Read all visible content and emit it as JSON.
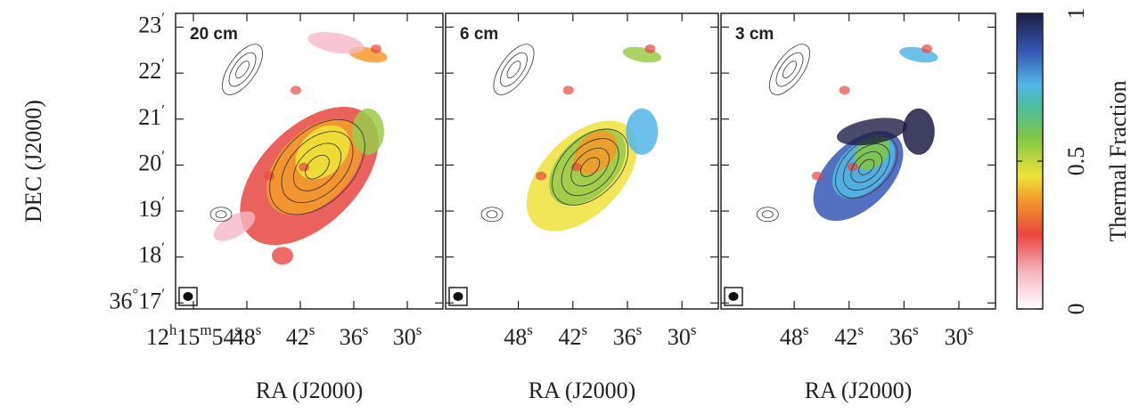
{
  "y_axis": {
    "label": "DEC (J2000)",
    "lim": [
      16.87,
      23.3
    ],
    "ticks": [
      {
        "value": 23,
        "label": "23′"
      },
      {
        "value": 22,
        "label": "22′"
      },
      {
        "value": 21,
        "label": "21′"
      },
      {
        "value": 20,
        "label": "20′"
      },
      {
        "value": 19,
        "label": "19′"
      },
      {
        "value": 18,
        "label": "18′"
      },
      {
        "value": 17,
        "label": "36°17′"
      }
    ]
  },
  "panels": [
    {
      "label": "20 cm",
      "x_axis": {
        "label": "RA (J2000)",
        "lim": [
          56,
          26
        ],
        "ticks": [
          {
            "value": 54,
            "label": "12h15m54s"
          },
          {
            "value": 48,
            "label": "48s"
          },
          {
            "value": 42,
            "label": "42s"
          },
          {
            "value": 36,
            "label": "36s"
          },
          {
            "value": 30,
            "label": "30s"
          }
        ]
      }
    },
    {
      "label": "6 cm",
      "x_axis": {
        "label": "RA (J2000)",
        "lim": [
          56,
          26
        ],
        "ticks": [
          {
            "value": 48,
            "label": "48s"
          },
          {
            "value": 42,
            "label": "42s"
          },
          {
            "value": 36,
            "label": "36s"
          },
          {
            "value": 30,
            "label": "30s"
          }
        ]
      }
    },
    {
      "label": "3 cm",
      "x_axis": {
        "label": "RA (J2000)",
        "lim": [
          56,
          26
        ],
        "ticks": [
          {
            "value": 48,
            "label": "48s"
          },
          {
            "value": 42,
            "label": "42s"
          },
          {
            "value": 36,
            "label": "36s"
          },
          {
            "value": 30,
            "label": "30s"
          }
        ]
      }
    }
  ],
  "colorbar": {
    "label": "Thermal Fraction",
    "lim": [
      0,
      1
    ],
    "ticks": [
      0,
      0.5,
      1
    ]
  }
}
